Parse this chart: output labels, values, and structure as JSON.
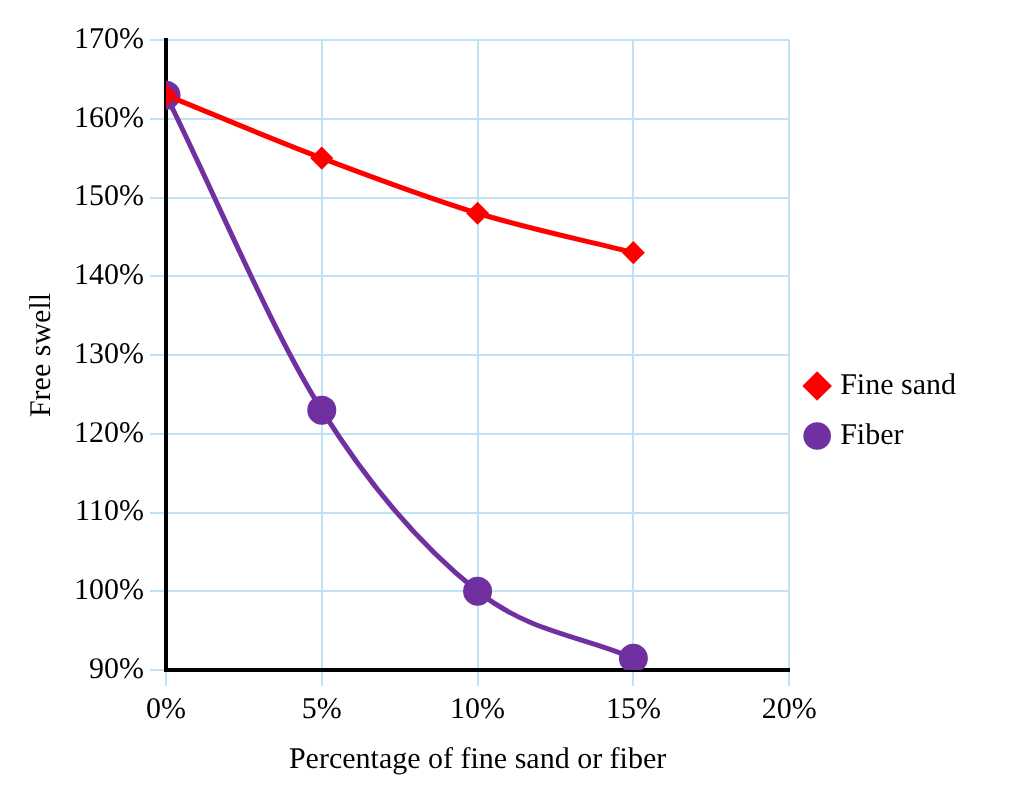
{
  "chart_data": {
    "type": "line",
    "xlabel": "Percentage of fine sand or fiber",
    "ylabel": "Free swell",
    "x": [
      0,
      5,
      10,
      15
    ],
    "series": [
      {
        "name": "Fine sand",
        "color": "#ff0000",
        "values": [
          163,
          155,
          148,
          143
        ],
        "marker": "diamond"
      },
      {
        "name": "Fiber",
        "color": "#7030a0",
        "values": [
          163,
          123,
          100,
          91.5
        ],
        "marker": "circle"
      }
    ],
    "xlim": [
      0,
      20
    ],
    "xticks": [
      {
        "value": 0,
        "label": "0%"
      },
      {
        "value": 5,
        "label": "5%"
      },
      {
        "value": 10,
        "label": "10%"
      },
      {
        "value": 15,
        "label": "15%"
      },
      {
        "value": 20,
        "label": "20%"
      }
    ],
    "ylim": [
      90,
      170
    ],
    "yticks": [
      {
        "value": 90,
        "label": "90%"
      },
      {
        "value": 100,
        "label": "100%"
      },
      {
        "value": 110,
        "label": "110%"
      },
      {
        "value": 120,
        "label": "120%"
      },
      {
        "value": 130,
        "label": "130%"
      },
      {
        "value": 140,
        "label": "140%"
      },
      {
        "value": 150,
        "label": "150%"
      },
      {
        "value": 160,
        "label": "160%"
      },
      {
        "value": 170,
        "label": "170%"
      }
    ],
    "grid": true,
    "legend": "right"
  }
}
